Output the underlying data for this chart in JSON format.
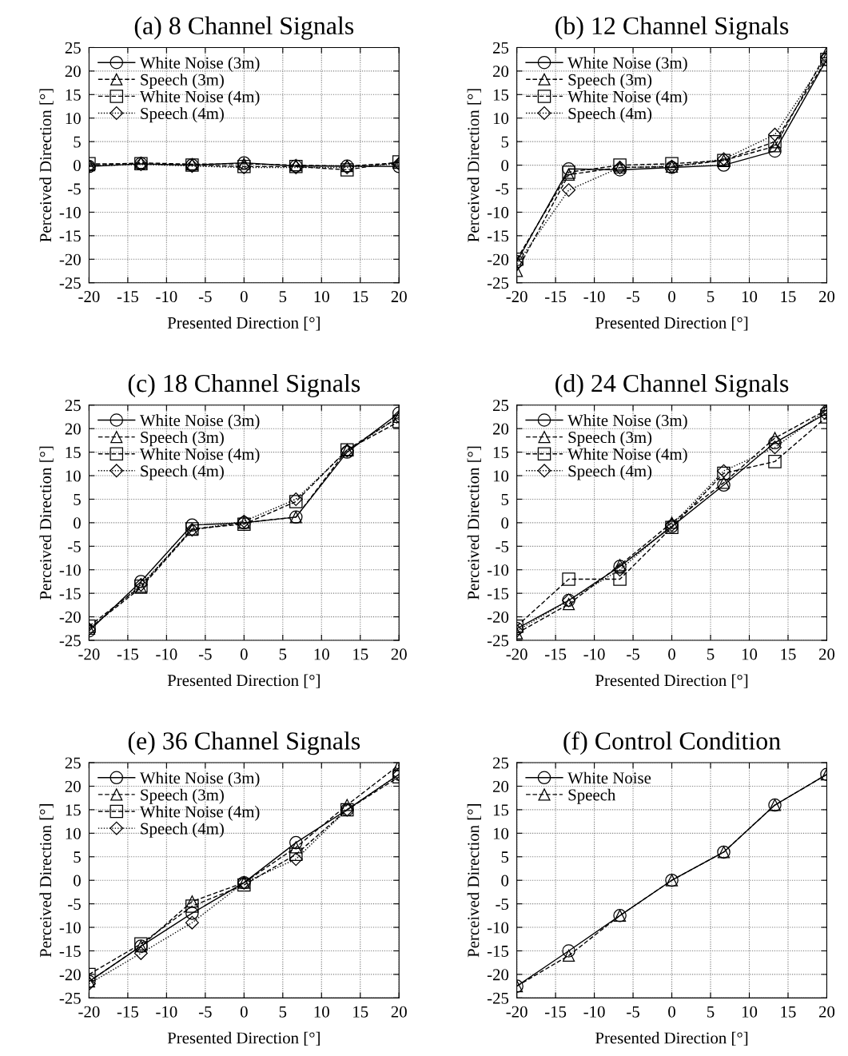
{
  "chart_data": [
    {
      "type": "line",
      "title": "(a) 8 Channel Signals",
      "xlabel": "Presented Direction [°]",
      "ylabel": "Perceived Direction [°]",
      "x": [
        -20,
        -13.3,
        -6.7,
        0,
        6.7,
        13.3,
        20
      ],
      "xlim": [
        -20,
        20
      ],
      "xticks": [
        -20,
        -15,
        -10,
        -5,
        0,
        5,
        10,
        15,
        20
      ],
      "ylim": [
        -25,
        25
      ],
      "yticks": [
        -25,
        -20,
        -15,
        -10,
        -5,
        0,
        5,
        10,
        15,
        20,
        25
      ],
      "grid": true,
      "legend": "top left",
      "series": [
        {
          "name": "White Noise (3m)",
          "color": "#000000",
          "marker": "circle",
          "line_style": "solid",
          "values": [
            -0.3,
            0.3,
            0,
            0.5,
            -0.2,
            -0.2,
            -0.3
          ]
        },
        {
          "name": "Speech (3m)",
          "color": "#000000",
          "marker": "triangle",
          "line_style": "dashed",
          "values": [
            0,
            0.5,
            0.2,
            0.3,
            0,
            -0.2,
            0.5
          ]
        },
        {
          "name": "White Noise (4m)",
          "color": "#000000",
          "marker": "square",
          "line_style": "dashed",
          "values": [
            0.3,
            0.3,
            0,
            -0.3,
            -0.3,
            -1,
            0.7
          ]
        },
        {
          "name": "Speech (4m)",
          "color": "#000000",
          "marker": "diamond",
          "line_style": "dotted",
          "values": [
            -0.2,
            0.2,
            -0.2,
            -0.5,
            -0.5,
            -0.5,
            0.3
          ]
        }
      ]
    },
    {
      "type": "line",
      "title": "(b) 12 Channel Signals",
      "xlabel": "Presented Direction [°]",
      "ylabel": "Perceived Direction [°]",
      "x": [
        -20,
        -13.3,
        -6.7,
        0,
        6.7,
        13.3,
        20
      ],
      "xlim": [
        -20,
        20
      ],
      "xticks": [
        -20,
        -15,
        -10,
        -5,
        0,
        5,
        10,
        15,
        20
      ],
      "ylim": [
        -25,
        25
      ],
      "yticks": [
        -25,
        -20,
        -15,
        -10,
        -5,
        0,
        5,
        10,
        15,
        20,
        25
      ],
      "grid": true,
      "legend": "top left",
      "series": [
        {
          "name": "White Noise (3m)",
          "color": "#000000",
          "marker": "circle",
          "line_style": "solid",
          "values": [
            -20.5,
            -0.8,
            -1,
            -0.5,
            0,
            3,
            22.5
          ]
        },
        {
          "name": "Speech (3m)",
          "color": "#000000",
          "marker": "triangle",
          "line_style": "dashed",
          "values": [
            -22.5,
            -2,
            -0.5,
            -0.3,
            1,
            4,
            24
          ]
        },
        {
          "name": "White Noise (4m)",
          "color": "#000000",
          "marker": "square",
          "line_style": "dashed",
          "values": [
            -20,
            -1.5,
            0,
            0.3,
            1,
            5,
            22.5
          ]
        },
        {
          "name": "Speech (4m)",
          "color": "#000000",
          "marker": "diamond",
          "line_style": "dotted",
          "values": [
            -21,
            -5.3,
            -0.5,
            -0.3,
            1.3,
            6.5,
            23
          ]
        }
      ]
    },
    {
      "type": "line",
      "title": "(c) 18 Channel Signals",
      "xlabel": "Presented Direction [°]",
      "ylabel": "Perceived Direction [°]",
      "x": [
        -20,
        -13.3,
        -6.7,
        0,
        6.7,
        13.3,
        20
      ],
      "xlim": [
        -20,
        20
      ],
      "xticks": [
        -20,
        -15,
        -10,
        -5,
        0,
        5,
        10,
        15,
        20
      ],
      "ylim": [
        -25,
        25
      ],
      "yticks": [
        -25,
        -20,
        -15,
        -10,
        -5,
        0,
        5,
        10,
        15,
        20,
        25
      ],
      "grid": true,
      "legend": "top left",
      "series": [
        {
          "name": "White Noise (3m)",
          "color": "#000000",
          "marker": "circle",
          "line_style": "solid",
          "values": [
            -23,
            -12.5,
            -0.5,
            0,
            1.2,
            15,
            23.3
          ]
        },
        {
          "name": "Speech (3m)",
          "color": "#000000",
          "marker": "triangle",
          "line_style": "dashed",
          "values": [
            -22.5,
            -13.8,
            -1.5,
            0,
            1.2,
            15.5,
            22.5
          ]
        },
        {
          "name": "White Noise (4m)",
          "color": "#000000",
          "marker": "square",
          "line_style": "dashed",
          "values": [
            -22,
            -13.5,
            -1.3,
            -0.3,
            4.5,
            15.5,
            21.5
          ]
        },
        {
          "name": "Speech (4m)",
          "color": "#000000",
          "marker": "diamond",
          "line_style": "dotted",
          "values": [
            -22.6,
            -13.2,
            -1.5,
            0.3,
            5,
            15.3,
            22.5
          ]
        }
      ]
    },
    {
      "type": "line",
      "title": "(d) 24 Channel Signals",
      "xlabel": "Presented Direction [°]",
      "ylabel": "Perceived Direction [°]",
      "x": [
        -20,
        -13.3,
        -6.7,
        0,
        6.7,
        13.3,
        20
      ],
      "xlim": [
        -20,
        20
      ],
      "xticks": [
        -20,
        -15,
        -10,
        -5,
        0,
        5,
        10,
        15,
        20
      ],
      "ylim": [
        -25,
        25
      ],
      "yticks": [
        -25,
        -20,
        -15,
        -10,
        -5,
        0,
        5,
        10,
        15,
        20,
        25
      ],
      "grid": true,
      "legend": "top left",
      "series": [
        {
          "name": "White Noise (3m)",
          "color": "#000000",
          "marker": "circle",
          "line_style": "solid",
          "values": [
            -22.5,
            -16.5,
            -9.3,
            -0.8,
            8,
            17,
            23.3
          ]
        },
        {
          "name": "Speech (3m)",
          "color": "#000000",
          "marker": "triangle",
          "line_style": "dashed",
          "values": [
            -23.5,
            -17.3,
            -9,
            0,
            8.5,
            18,
            24
          ]
        },
        {
          "name": "White Noise (4m)",
          "color": "#000000",
          "marker": "square",
          "line_style": "dashed",
          "values": [
            -22,
            -12,
            -12,
            -1,
            10.5,
            13,
            22.5
          ]
        },
        {
          "name": "Speech (4m)",
          "color": "#000000",
          "marker": "diamond",
          "line_style": "dotted",
          "values": [
            -23,
            -16.5,
            -10,
            -0.5,
            11,
            16,
            24
          ]
        }
      ]
    },
    {
      "type": "line",
      "title": "(e) 36 Channel Signals",
      "xlabel": "Presented Direction [°]",
      "ylabel": "Perceived Direction [°]",
      "x": [
        -20,
        -13.3,
        -6.7,
        0,
        6.7,
        13.3,
        20
      ],
      "xlim": [
        -20,
        20
      ],
      "xticks": [
        -20,
        -15,
        -10,
        -5,
        0,
        5,
        10,
        15,
        20
      ],
      "ylim": [
        -25,
        25
      ],
      "yticks": [
        -25,
        -20,
        -15,
        -10,
        -5,
        0,
        5,
        10,
        15,
        20,
        25
      ],
      "grid": true,
      "legend": "top left",
      "series": [
        {
          "name": "White Noise (3m)",
          "color": "#000000",
          "marker": "circle",
          "line_style": "solid",
          "values": [
            -21.5,
            -14,
            -7,
            -0.5,
            8,
            15,
            22.5
          ]
        },
        {
          "name": "Speech (3m)",
          "color": "#000000",
          "marker": "triangle",
          "line_style": "dashed",
          "values": [
            -21.5,
            -14,
            -4.5,
            -0.5,
            7,
            16,
            24.5
          ]
        },
        {
          "name": "White Noise (4m)",
          "color": "#000000",
          "marker": "square",
          "line_style": "dashed",
          "values": [
            -20,
            -13.5,
            -5.5,
            -1,
            5.5,
            15,
            22
          ]
        },
        {
          "name": "Speech (4m)",
          "color": "#000000",
          "marker": "diamond",
          "line_style": "dotted",
          "values": [
            -22,
            -15.5,
            -9,
            -0.5,
            4.5,
            15,
            22.5
          ]
        }
      ]
    },
    {
      "type": "line",
      "title": "(f) Control Condition",
      "xlabel": "Presented Direction [°]",
      "ylabel": "Perceived Direction [°]",
      "x": [
        -20,
        -13.3,
        -6.7,
        0,
        6.7,
        13.3,
        20
      ],
      "xlim": [
        -20,
        20
      ],
      "xticks": [
        -20,
        -15,
        -10,
        -5,
        0,
        5,
        10,
        15,
        20
      ],
      "ylim": [
        -25,
        25
      ],
      "yticks": [
        -25,
        -20,
        -15,
        -10,
        -5,
        0,
        5,
        10,
        15,
        20,
        25
      ],
      "grid": true,
      "legend": "top left",
      "series": [
        {
          "name": "White Noise",
          "color": "#000000",
          "marker": "circle",
          "line_style": "solid",
          "values": [
            -22.5,
            -15,
            -7.5,
            0,
            6,
            16,
            22.5
          ]
        },
        {
          "name": "Speech",
          "color": "#000000",
          "marker": "triangle",
          "line_style": "dashed",
          "values": [
            -22.5,
            -16,
            -7.5,
            0,
            6,
            16,
            22.5
          ]
        }
      ]
    }
  ]
}
